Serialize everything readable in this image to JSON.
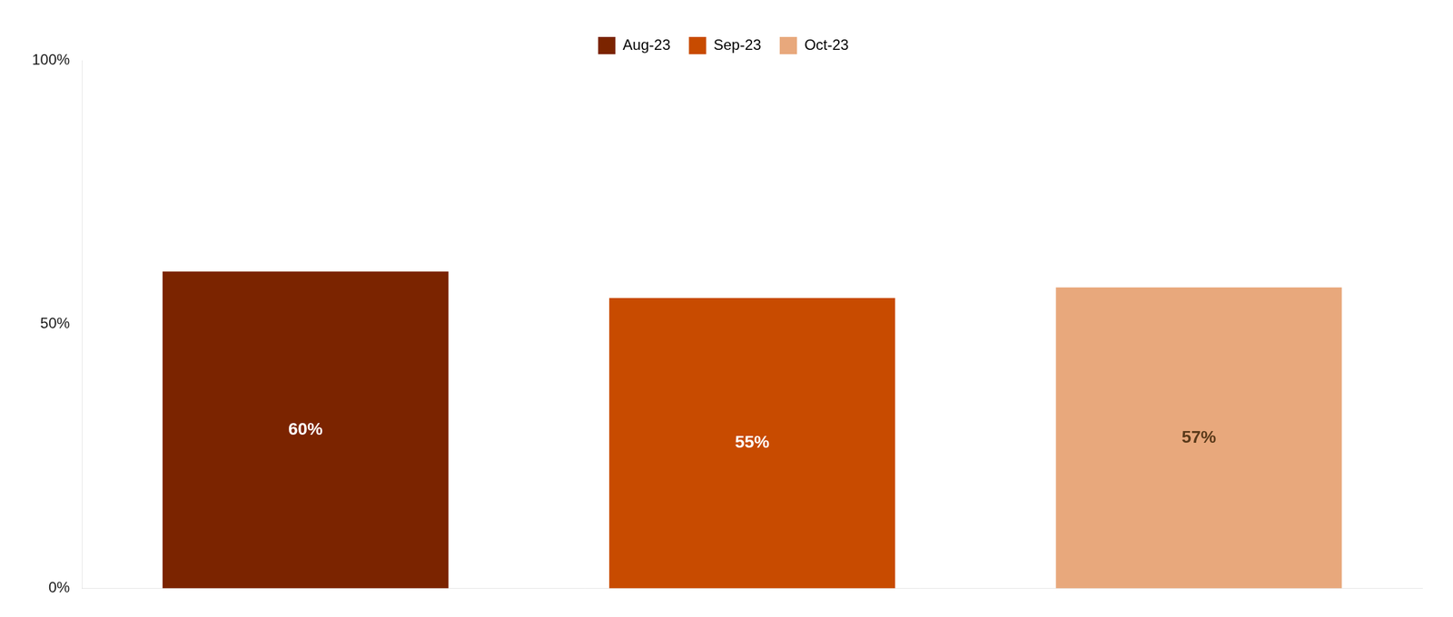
{
  "chart_data": {
    "type": "bar",
    "categories": [
      "Aug-23",
      "Sep-23",
      "Oct-23"
    ],
    "values": [
      0.6,
      0.55,
      0.57
    ],
    "value_labels": [
      "60%",
      "55%",
      "57%"
    ],
    "data_labels": true,
    "colors": [
      "#7B2400",
      "#C84B00",
      "#E8A87C"
    ],
    "ylim": [
      0,
      1.0
    ],
    "yticks": [
      {
        "value": 0,
        "label": "0%"
      },
      {
        "value": 0.5,
        "label": "50%"
      },
      {
        "value": 1.0,
        "label": "100%"
      }
    ],
    "grid": false,
    "legend": "top",
    "tick_labels": "y"
  }
}
